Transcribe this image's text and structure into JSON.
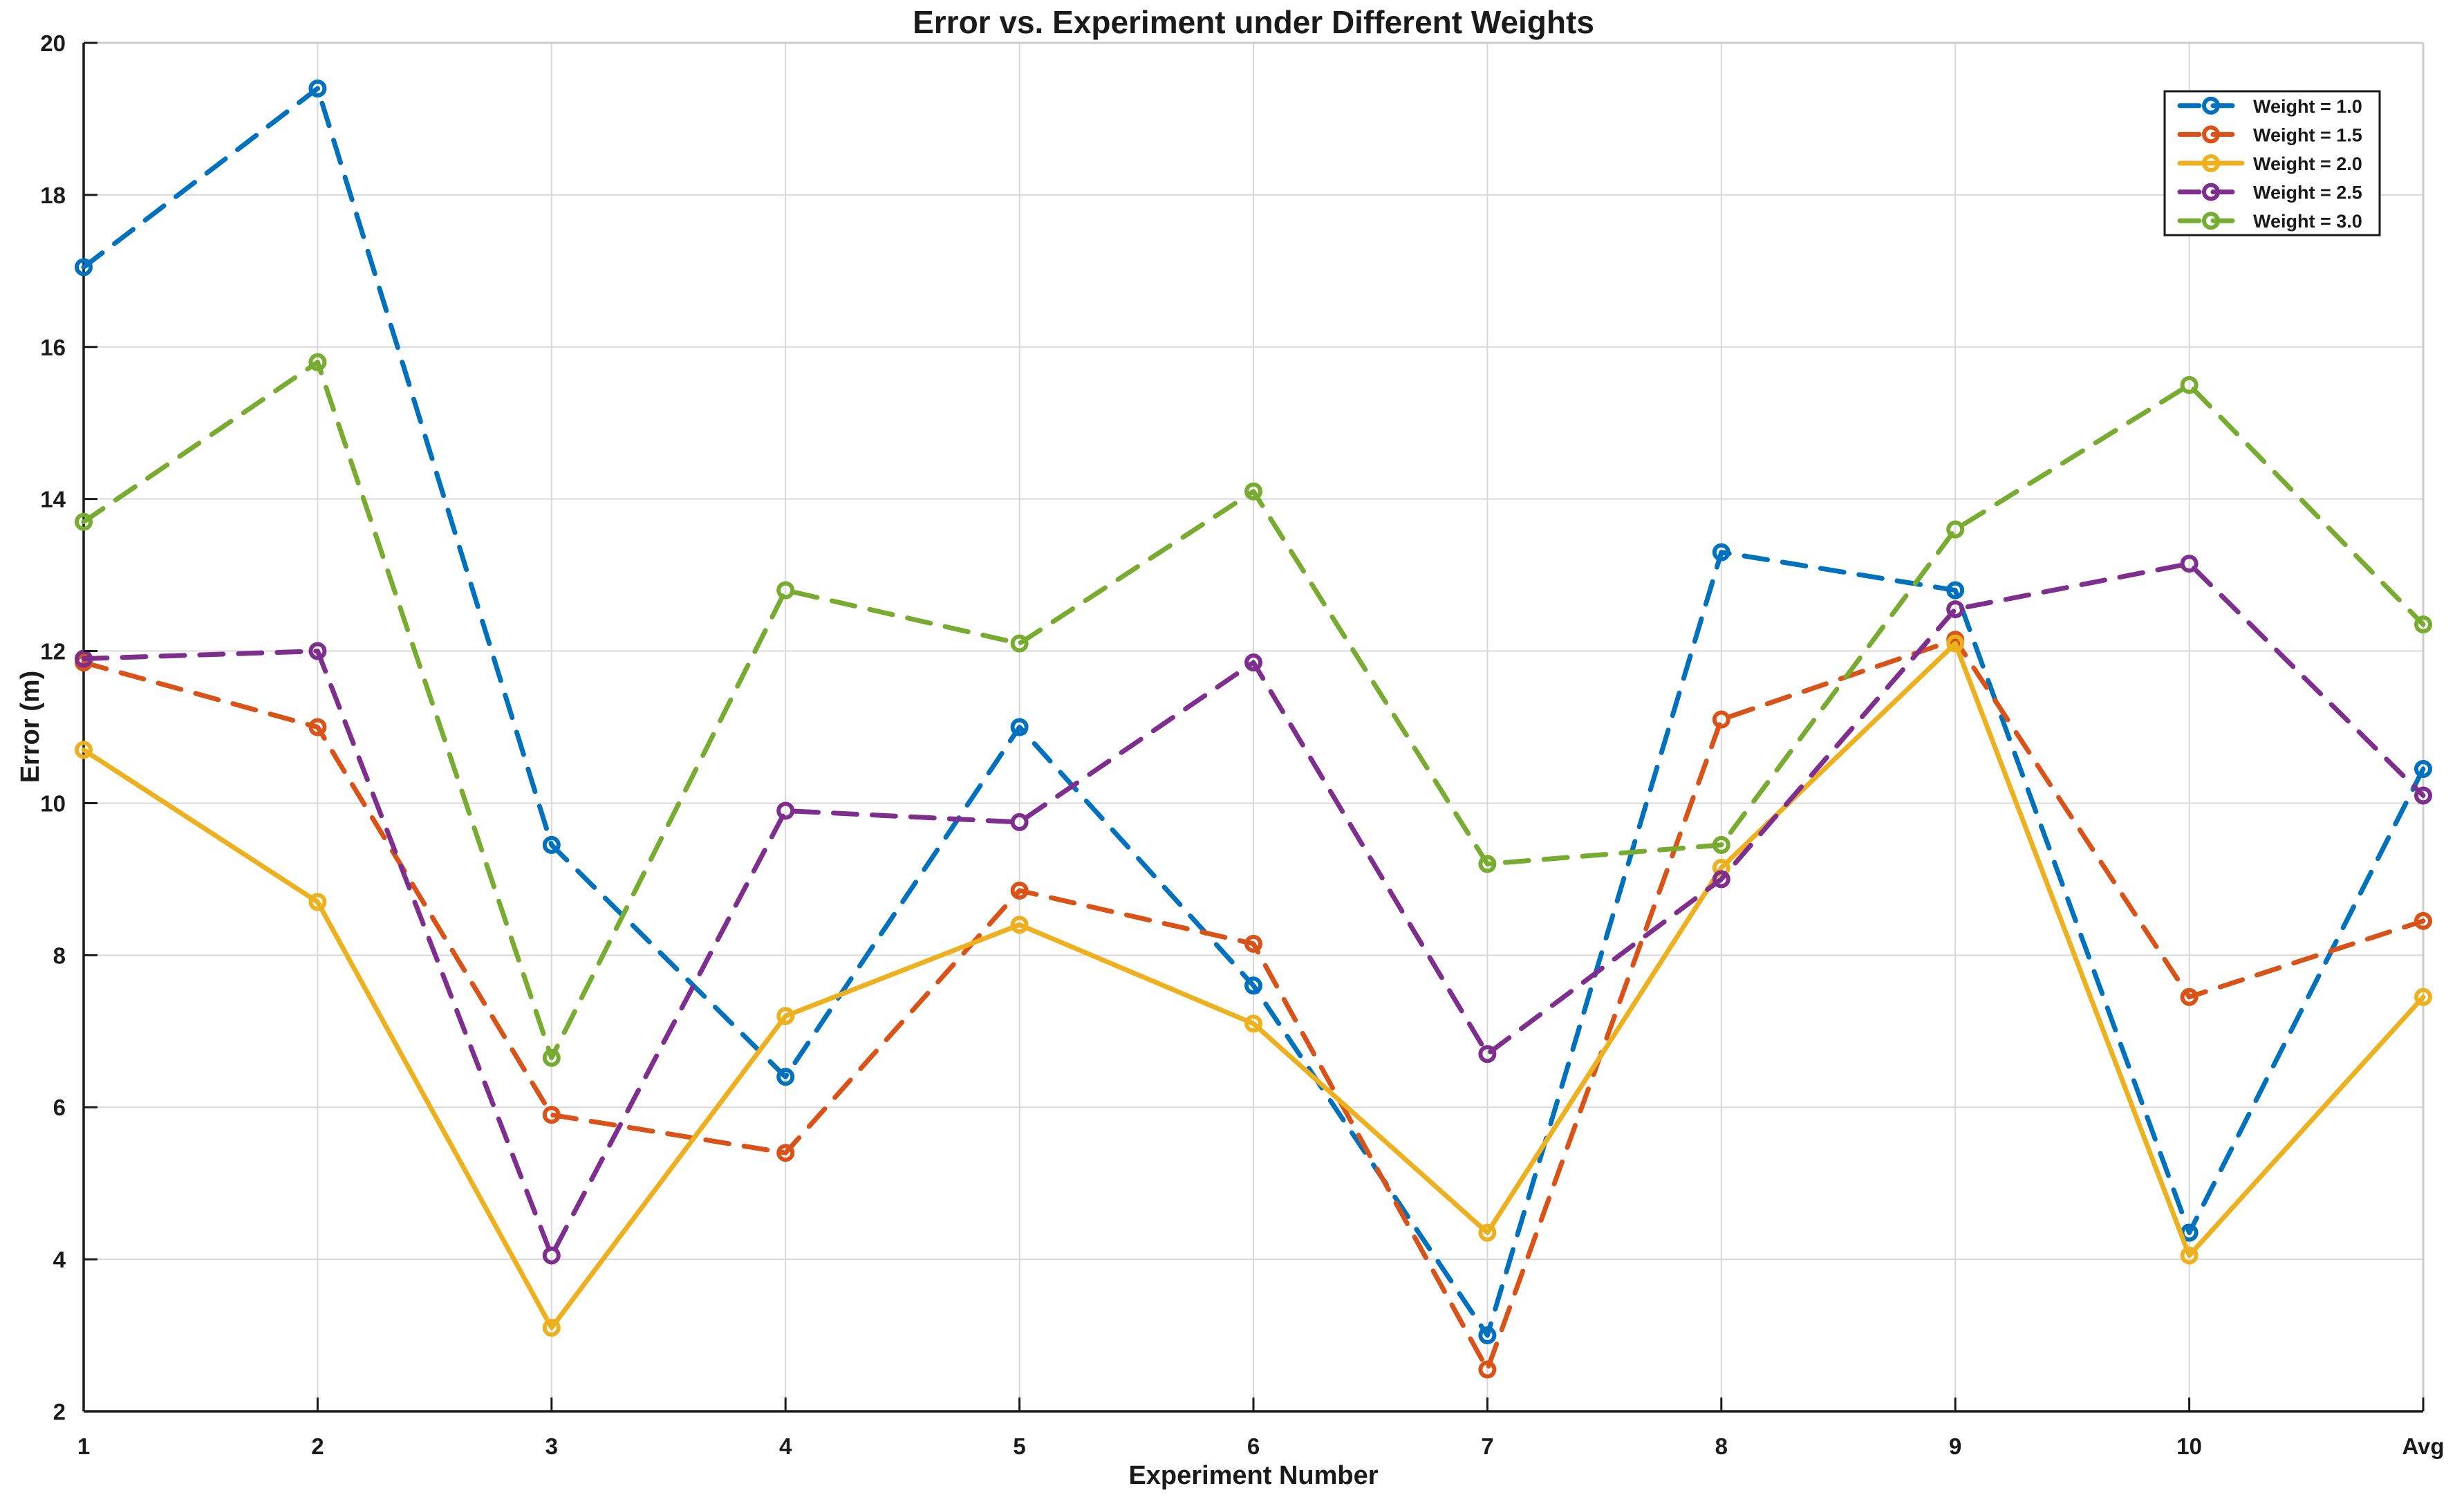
{
  "figure": {
    "background": "#ffffff",
    "axis_color": "#1a1a1a",
    "box_color": "#cccccc",
    "grid_color": "#d9d9d9",
    "legend_border_color": "#1a1a1a",
    "legend_background": "#ffffff"
  },
  "chart_data": {
    "type": "line",
    "title": "Error vs. Experiment under Different Weights",
    "xlabel": "Experiment Number",
    "ylabel": "Error (m)",
    "categories": [
      "1",
      "2",
      "3",
      "4",
      "5",
      "6",
      "7",
      "8",
      "9",
      "10",
      "Avg"
    ],
    "ylim": [
      2,
      20
    ],
    "yticks": [
      2,
      4,
      6,
      8,
      10,
      12,
      14,
      16,
      18,
      20
    ],
    "grid": true,
    "legend_position": "top-right",
    "marker": "circle-open",
    "series": [
      {
        "name": "Weight = 1.0",
        "color": "#0072BD",
        "style": "dashed",
        "values": [
          17.05,
          19.4,
          9.45,
          6.4,
          11.0,
          7.6,
          3.0,
          13.3,
          12.8,
          4.35,
          10.45
        ]
      },
      {
        "name": "Weight = 1.5",
        "color": "#D95319",
        "style": "dashed",
        "values": [
          11.85,
          11.0,
          5.9,
          5.4,
          8.85,
          8.15,
          2.55,
          11.1,
          12.15,
          7.45,
          8.45
        ]
      },
      {
        "name": "Weight = 2.0",
        "color": "#EDB120",
        "style": "solid",
        "values": [
          10.7,
          8.7,
          3.1,
          7.2,
          8.4,
          7.1,
          4.35,
          9.15,
          12.1,
          4.05,
          7.45
        ]
      },
      {
        "name": "Weight = 2.5",
        "color": "#7E2F8E",
        "style": "dashed",
        "values": [
          11.9,
          12.0,
          4.05,
          9.9,
          9.75,
          11.85,
          6.7,
          9.0,
          12.55,
          13.15,
          10.1
        ]
      },
      {
        "name": "Weight = 3.0",
        "color": "#77AC30",
        "style": "dashed",
        "values": [
          13.7,
          15.8,
          6.65,
          12.8,
          12.1,
          14.1,
          9.2,
          9.45,
          13.6,
          15.5,
          12.35
        ]
      }
    ]
  }
}
